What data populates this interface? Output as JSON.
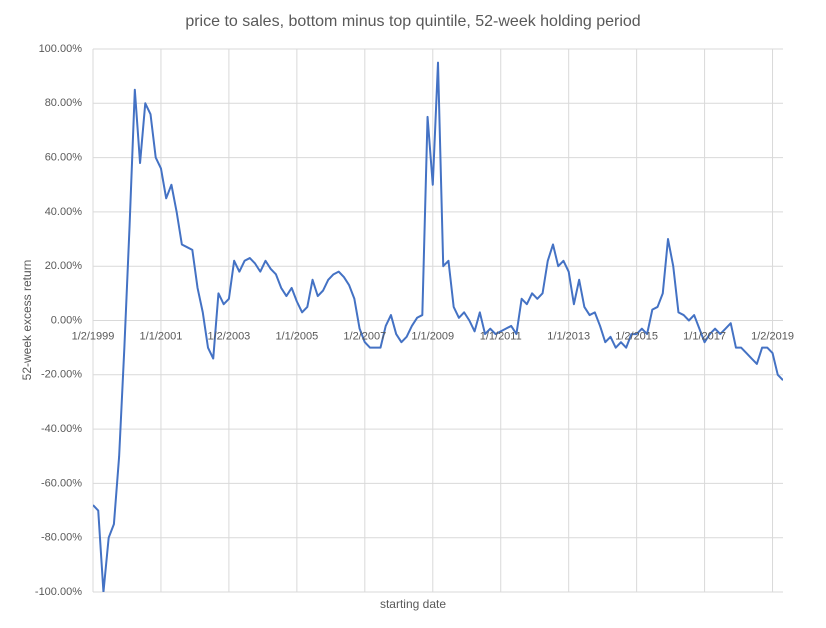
{
  "chart_data": {
    "type": "line",
    "title": "price to sales, bottom minus top quintile, 52-week holding period",
    "x_label": "starting date",
    "y_label": "52-week excess return",
    "categories": [
      "1/2/1999",
      null,
      null,
      null,
      null,
      null,
      null,
      null,
      null,
      null,
      null,
      null,
      null,
      "1/1/2001",
      null,
      null,
      null,
      null,
      null,
      null,
      null,
      null,
      null,
      null,
      null,
      null,
      "1/2/2003",
      null,
      null,
      null,
      null,
      null,
      null,
      null,
      null,
      null,
      null,
      null,
      null,
      "1/1/2005",
      null,
      null,
      null,
      null,
      null,
      null,
      null,
      null,
      null,
      null,
      null,
      null,
      "1/2/2007",
      null,
      null,
      null,
      null,
      null,
      null,
      null,
      null,
      null,
      null,
      null,
      null,
      "1/1/2009",
      null,
      null,
      null,
      null,
      null,
      null,
      null,
      null,
      null,
      null,
      null,
      null,
      "1/1/2011",
      null,
      null,
      null,
      null,
      null,
      null,
      null,
      null,
      null,
      null,
      null,
      null,
      "1/1/2013",
      null,
      null,
      null,
      null,
      null,
      null,
      null,
      null,
      null,
      null,
      null,
      null,
      "1/2/2015",
      null,
      null,
      null,
      null,
      null,
      null,
      null,
      null,
      null,
      null,
      null,
      null,
      "1/1/2017",
      null,
      null,
      null,
      null,
      null,
      null,
      null,
      null,
      null,
      null,
      null,
      null,
      "1/2/2019",
      null,
      null
    ],
    "values": [
      -68,
      -70,
      -100,
      -80,
      -75,
      -50,
      -10,
      35,
      85,
      58,
      80,
      76,
      60,
      56,
      45,
      50,
      40,
      28,
      27,
      26,
      12,
      3,
      -10,
      -14,
      10,
      6,
      8,
      22,
      18,
      22,
      23,
      21,
      18,
      22,
      19,
      17,
      12,
      9,
      12,
      7,
      3,
      5,
      15,
      9,
      11,
      15,
      17,
      18,
      16,
      13,
      8,
      -3,
      -8,
      -10,
      -10,
      -10,
      -2,
      2,
      -5,
      -8,
      -6,
      -2,
      1,
      2,
      75,
      50,
      95,
      20,
      22,
      5,
      1,
      3,
      0,
      -4,
      3,
      -5,
      -3,
      -5,
      -4,
      -3,
      -2,
      -5,
      8,
      6,
      10,
      8,
      10,
      22,
      28,
      20,
      22,
      18,
      6,
      15,
      5,
      2,
      3,
      -2,
      -8,
      -6,
      -10,
      -8,
      -10,
      -5,
      -5,
      -3,
      -5,
      4,
      5,
      10,
      30,
      20,
      3,
      2,
      0,
      2,
      -3,
      -8,
      -5,
      -3,
      -5,
      -3,
      -1,
      -10,
      -10,
      -12,
      -14,
      -16,
      -10,
      -10,
      -12,
      -20,
      -22
    ],
    "color": "#4472c4",
    "ylim": [
      -100,
      100
    ],
    "yticks": [
      {
        "value": -100,
        "label": "-100.00%"
      },
      {
        "value": -80,
        "label": "-80.00%"
      },
      {
        "value": -60,
        "label": "-60.00%"
      },
      {
        "value": -40,
        "label": "-40.00%"
      },
      {
        "value": -20,
        "label": "-20.00%"
      },
      {
        "value": 0,
        "label": "0.00%"
      },
      {
        "value": 20,
        "label": "20.00%"
      },
      {
        "value": 40,
        "label": "40.00%"
      },
      {
        "value": 60,
        "label": "60.00%"
      },
      {
        "value": 80,
        "label": "80.00%"
      },
      {
        "value": 100,
        "label": "100.00%"
      }
    ],
    "grid": true
  }
}
